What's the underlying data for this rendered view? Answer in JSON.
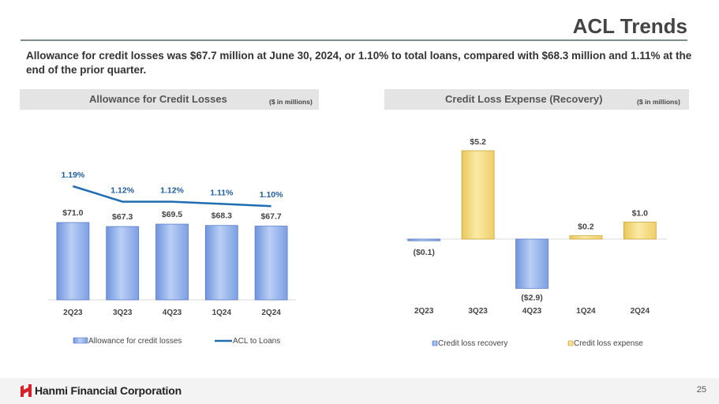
{
  "page": {
    "title": "ACL Trends",
    "subtitle": "Allowance for credit losses was $67.7 million at June 30, 2024, or 1.10% to total loans, compared with $68.3 million and 1.11% at the end of the prior quarter.",
    "page_number": "25",
    "company": "Hanmi Financial Corporation"
  },
  "panels": {
    "left": {
      "title": "Allowance for Credit Losses",
      "units": "($ in millions)"
    },
    "right": {
      "title": "Credit Loss Expense (Recovery)",
      "units": "($ in millions)"
    }
  },
  "colors": {
    "bar_blue": "#8fb0ec",
    "bar_yellow": "#f5dc7a",
    "line_blue": "#1f6db3",
    "label_blue": "#1f5c9e"
  },
  "chart_data": [
    {
      "type": "bar",
      "title": "Allowance for Credit Losses",
      "categories": [
        "2Q23",
        "3Q23",
        "4Q23",
        "1Q24",
        "2Q24"
      ],
      "series": [
        {
          "name": "Allowance for credit losses",
          "type": "bar",
          "values": [
            71.0,
            67.3,
            69.5,
            68.3,
            67.7
          ],
          "labels": [
            "$71.0",
            "$67.3",
            "$69.5",
            "$68.3",
            "$67.7"
          ]
        },
        {
          "name": "ACL to Loans",
          "type": "line",
          "values": [
            1.19,
            1.12,
            1.12,
            1.11,
            1.1
          ],
          "labels": [
            "1.19%",
            "1.12%",
            "1.12%",
            "1.11%",
            "1.10%"
          ]
        }
      ],
      "legend": [
        "Allowance for credit losses",
        "ACL to Loans"
      ]
    },
    {
      "type": "bar",
      "title": "Credit Loss Expense (Recovery)",
      "categories": [
        "2Q23",
        "3Q23",
        "4Q23",
        "1Q24",
        "2Q24"
      ],
      "values": [
        -0.1,
        5.2,
        -2.9,
        0.2,
        1.0
      ],
      "labels": [
        "($0.1)",
        "$5.2",
        "($2.9)",
        "$0.2",
        "$1.0"
      ],
      "legend": [
        "Credit loss recovery",
        "Credit loss expense"
      ]
    }
  ]
}
